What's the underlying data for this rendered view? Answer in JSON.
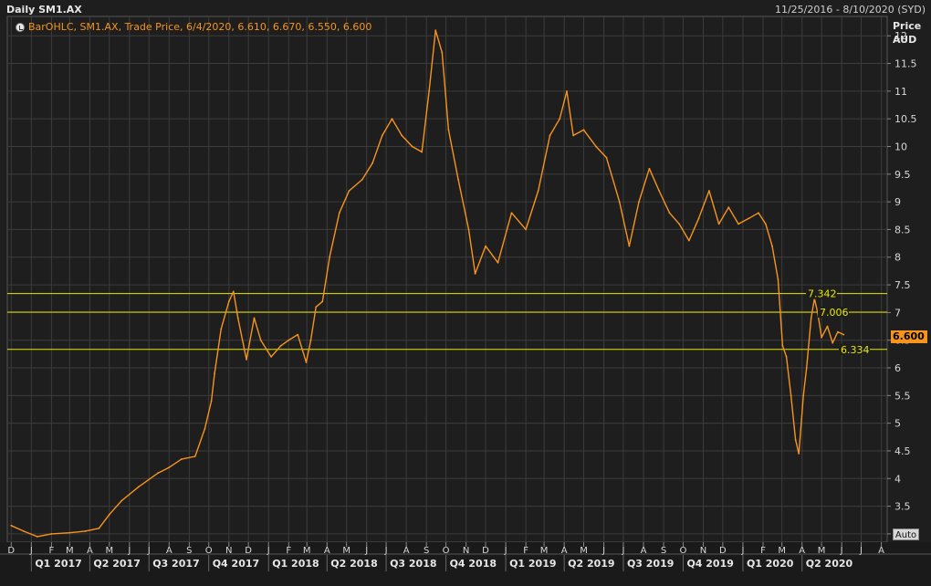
{
  "header": {
    "title": "Daily SM1.AX",
    "date_range": "11/25/2016 - 8/10/2020 (SYD)"
  },
  "legend": {
    "icon": "chart-settings-icon",
    "text": "BarOHLC, SM1.AX, Trade Price, 6/4/2020, 6.610, 6.670, 6.550, 6.600"
  },
  "axis": {
    "y_title": "Price",
    "y_unit": "AUD",
    "auto_label": "Auto",
    "last_price": "6.600"
  },
  "colors": {
    "series": "#f7941d",
    "hline": "#e8e800",
    "grid": "#3c3c3c",
    "background": "#1e1e1e"
  },
  "chart_data": {
    "type": "line",
    "title": "Daily SM1.AX",
    "series_label": "BarOHLC, SM1.AX, Trade Price",
    "ylim": [
      2.85,
      12.35
    ],
    "y_ticks": [
      3,
      3.5,
      4,
      4.5,
      5,
      5.5,
      6,
      6.5,
      7,
      7.5,
      8,
      8.5,
      9,
      9.5,
      10,
      10.5,
      11,
      11.5,
      12
    ],
    "y_tick_labels": [
      "3",
      "3.5",
      "4",
      "4.5",
      "5",
      "5.5",
      "6",
      "6.5",
      "7",
      "7.5",
      "8",
      "8.5",
      "9",
      "9.5",
      "10",
      "10.5",
      "11",
      "11.5",
      "12"
    ],
    "month_labels": [
      "D",
      "J",
      "F",
      "M",
      "A",
      "M",
      "J",
      "J",
      "A",
      "S",
      "O",
      "N",
      "D",
      "J",
      "F",
      "M",
      "A",
      "M",
      "J",
      "J",
      "A",
      "S",
      "O",
      "N",
      "D",
      "J",
      "F",
      "M",
      "A",
      "M",
      "J",
      "J",
      "A",
      "S",
      "O",
      "N",
      "D",
      "J",
      "F",
      "M",
      "A",
      "M",
      "J",
      "J",
      "A"
    ],
    "quarter_labels": [
      "Q1 2017",
      "Q2 2017",
      "Q3 2017",
      "Q4 2017",
      "Q1 2018",
      "Q2 2018",
      "Q3 2018",
      "Q4 2018",
      "Q1 2019",
      "Q2 2019",
      "Q3 2019",
      "Q4 2019",
      "Q1 2020",
      "Q2 2020"
    ],
    "horizontal_lines": [
      {
        "value": 7.342,
        "label": "7.342"
      },
      {
        "value": 7.006,
        "label": "7.006"
      },
      {
        "value": 6.334,
        "label": "6.334"
      }
    ],
    "price_points": [
      {
        "x": "2016-12-01",
        "y": 3.15
      },
      {
        "x": "2016-12-20",
        "y": 3.05
      },
      {
        "x": "2017-01-10",
        "y": 2.95
      },
      {
        "x": "2017-02-01",
        "y": 3.0
      },
      {
        "x": "2017-03-01",
        "y": 3.02
      },
      {
        "x": "2017-03-25",
        "y": 3.05
      },
      {
        "x": "2017-04-15",
        "y": 3.1
      },
      {
        "x": "2017-05-01",
        "y": 3.35
      },
      {
        "x": "2017-05-20",
        "y": 3.6
      },
      {
        "x": "2017-06-15",
        "y": 3.85
      },
      {
        "x": "2017-07-15",
        "y": 4.1
      },
      {
        "x": "2017-08-01",
        "y": 4.2
      },
      {
        "x": "2017-08-20",
        "y": 4.35
      },
      {
        "x": "2017-09-10",
        "y": 4.4
      },
      {
        "x": "2017-09-25",
        "y": 4.9
      },
      {
        "x": "2017-10-05",
        "y": 5.4
      },
      {
        "x": "2017-10-10",
        "y": 5.9
      },
      {
        "x": "2017-10-20",
        "y": 6.7
      },
      {
        "x": "2017-11-01",
        "y": 7.2
      },
      {
        "x": "2017-11-08",
        "y": 7.38
      },
      {
        "x": "2017-11-15",
        "y": 6.9
      },
      {
        "x": "2017-11-28",
        "y": 6.15
      },
      {
        "x": "2017-12-10",
        "y": 6.9
      },
      {
        "x": "2017-12-20",
        "y": 6.5
      },
      {
        "x": "2018-01-05",
        "y": 6.2
      },
      {
        "x": "2018-01-20",
        "y": 6.4
      },
      {
        "x": "2018-02-01",
        "y": 6.5
      },
      {
        "x": "2018-02-15",
        "y": 6.6
      },
      {
        "x": "2018-02-28",
        "y": 6.1
      },
      {
        "x": "2018-03-07",
        "y": 6.5
      },
      {
        "x": "2018-03-15",
        "y": 7.1
      },
      {
        "x": "2018-03-25",
        "y": 7.2
      },
      {
        "x": "2018-04-05",
        "y": 8.0
      },
      {
        "x": "2018-04-20",
        "y": 8.8
      },
      {
        "x": "2018-05-05",
        "y": 9.2
      },
      {
        "x": "2018-05-25",
        "y": 9.4
      },
      {
        "x": "2018-06-10",
        "y": 9.7
      },
      {
        "x": "2018-06-25",
        "y": 10.2
      },
      {
        "x": "2018-07-10",
        "y": 10.5
      },
      {
        "x": "2018-07-25",
        "y": 10.2
      },
      {
        "x": "2018-08-10",
        "y": 10.0
      },
      {
        "x": "2018-08-25",
        "y": 9.9
      },
      {
        "x": "2018-09-05",
        "y": 11.0
      },
      {
        "x": "2018-09-15",
        "y": 12.1
      },
      {
        "x": "2018-09-25",
        "y": 11.7
      },
      {
        "x": "2018-10-05",
        "y": 10.3
      },
      {
        "x": "2018-10-20",
        "y": 9.4
      },
      {
        "x": "2018-11-05",
        "y": 8.5
      },
      {
        "x": "2018-11-15",
        "y": 7.7
      },
      {
        "x": "2018-12-01",
        "y": 8.2
      },
      {
        "x": "2018-12-20",
        "y": 7.9
      },
      {
        "x": "2019-01-10",
        "y": 8.8
      },
      {
        "x": "2019-02-01",
        "y": 8.5
      },
      {
        "x": "2019-02-20",
        "y": 9.2
      },
      {
        "x": "2019-03-10",
        "y": 10.2
      },
      {
        "x": "2019-03-25",
        "y": 10.5
      },
      {
        "x": "2019-04-05",
        "y": 11.0
      },
      {
        "x": "2019-04-15",
        "y": 10.2
      },
      {
        "x": "2019-05-01",
        "y": 10.3
      },
      {
        "x": "2019-05-20",
        "y": 10.0
      },
      {
        "x": "2019-06-05",
        "y": 9.8
      },
      {
        "x": "2019-06-25",
        "y": 9.0
      },
      {
        "x": "2019-07-10",
        "y": 8.2
      },
      {
        "x": "2019-07-25",
        "y": 9.0
      },
      {
        "x": "2019-08-10",
        "y": 9.6
      },
      {
        "x": "2019-08-25",
        "y": 9.2
      },
      {
        "x": "2019-09-10",
        "y": 8.8
      },
      {
        "x": "2019-09-25",
        "y": 8.6
      },
      {
        "x": "2019-10-10",
        "y": 8.3
      },
      {
        "x": "2019-10-25",
        "y": 8.7
      },
      {
        "x": "2019-11-10",
        "y": 9.2
      },
      {
        "x": "2019-11-25",
        "y": 8.6
      },
      {
        "x": "2019-12-10",
        "y": 8.9
      },
      {
        "x": "2019-12-25",
        "y": 8.6
      },
      {
        "x": "2020-01-10",
        "y": 8.7
      },
      {
        "x": "2020-01-25",
        "y": 8.8
      },
      {
        "x": "2020-02-05",
        "y": 8.6
      },
      {
        "x": "2020-02-15",
        "y": 8.2
      },
      {
        "x": "2020-02-24",
        "y": 7.6
      },
      {
        "x": "2020-03-02",
        "y": 6.4
      },
      {
        "x": "2020-03-08",
        "y": 6.2
      },
      {
        "x": "2020-03-15",
        "y": 5.5
      },
      {
        "x": "2020-03-22",
        "y": 4.7
      },
      {
        "x": "2020-03-27",
        "y": 4.45
      },
      {
        "x": "2020-04-03",
        "y": 5.5
      },
      {
        "x": "2020-04-08",
        "y": 6.0
      },
      {
        "x": "2020-04-15",
        "y": 6.9
      },
      {
        "x": "2020-04-20",
        "y": 7.25
      },
      {
        "x": "2020-04-25",
        "y": 7.0
      },
      {
        "x": "2020-05-01",
        "y": 6.55
      },
      {
        "x": "2020-05-10",
        "y": 6.75
      },
      {
        "x": "2020-05-18",
        "y": 6.45
      },
      {
        "x": "2020-05-26",
        "y": 6.65
      },
      {
        "x": "2020-06-04",
        "y": 6.6
      }
    ]
  }
}
